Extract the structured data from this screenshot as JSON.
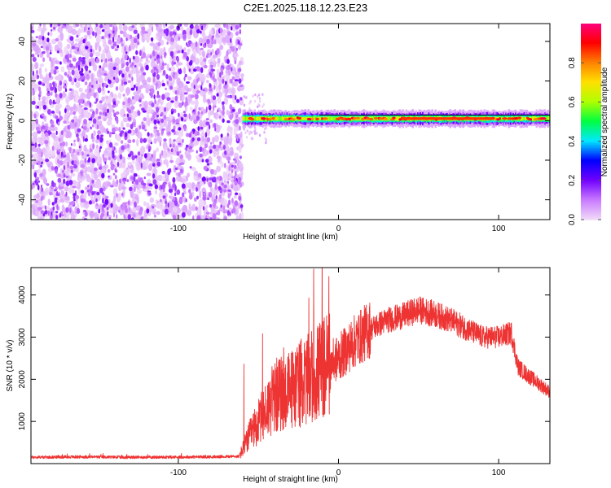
{
  "figure": {
    "title": "C2E1.2025.118.12.23.E23"
  },
  "chart_data": [
    {
      "type": "heatmap",
      "title": "C2E1.2025.118.12.23.E23",
      "xlabel": "Height of straight line (km)",
      "ylabel": "Frequency (Hz)",
      "xlim": [
        -192,
        132
      ],
      "ylim": [
        -50,
        49
      ],
      "x_ticks": [
        -100,
        0,
        100
      ],
      "y_ticks": [
        -40,
        -20,
        0,
        20,
        40
      ],
      "colorbar": {
        "label": "Normalized spectral amplitude",
        "range": [
          0,
          1
        ],
        "ticks": [
          0.0,
          0.2,
          0.4,
          0.6,
          0.8
        ],
        "tick_labels": [
          "0.0",
          "0.2",
          "0.4",
          "0.6",
          "0.8"
        ],
        "colormap": [
          "#f0d8f8",
          "#c878ff",
          "#7000ff",
          "#0000ff",
          "#00e8ff",
          "#00ff40",
          "#b0ff00",
          "#ffe000",
          "#ff8000",
          "#ff0000",
          "#ff0080"
        ]
      },
      "regions": [
        {
          "x_range": [
            -192,
            -60
          ],
          "description_values": {
            "freq_range": [
              -50,
              49
            ],
            "amplitude_range": [
              0.0,
              0.2
            ]
          }
        },
        {
          "x_range": [
            -60,
            132
          ],
          "description_values": {
            "freq_center": 1,
            "freq_halfwidth": 3,
            "amplitude_range": [
              0.3,
              0.95
            ]
          }
        }
      ]
    },
    {
      "type": "line",
      "xlabel": "Height of straight line (km)",
      "ylabel": "SNR (10 * v/v)",
      "xlim": [
        -192,
        132
      ],
      "ylim": [
        0,
        4650
      ],
      "x_ticks": [
        -100,
        0,
        100
      ],
      "y_ticks": [
        1000,
        2000,
        3000,
        4000
      ],
      "color": "#ee3333",
      "series": [
        {
          "x": [
            -192,
            -160,
            -130,
            -100,
            -80,
            -62,
            -55,
            -48,
            -40,
            -32,
            -25,
            -18,
            -12,
            -5,
            0,
            10,
            20,
            30,
            40,
            50,
            60,
            70,
            80,
            90,
            100,
            108,
            112,
            118,
            125,
            132
          ],
          "values": [
            150,
            160,
            150,
            155,
            160,
            170,
            700,
            1100,
            1600,
            1700,
            1900,
            2000,
            2200,
            2400,
            2500,
            2900,
            3200,
            3400,
            3500,
            3650,
            3550,
            3400,
            3200,
            3000,
            3000,
            3100,
            2300,
            2100,
            1900,
            1700
          ]
        }
      ]
    }
  ]
}
